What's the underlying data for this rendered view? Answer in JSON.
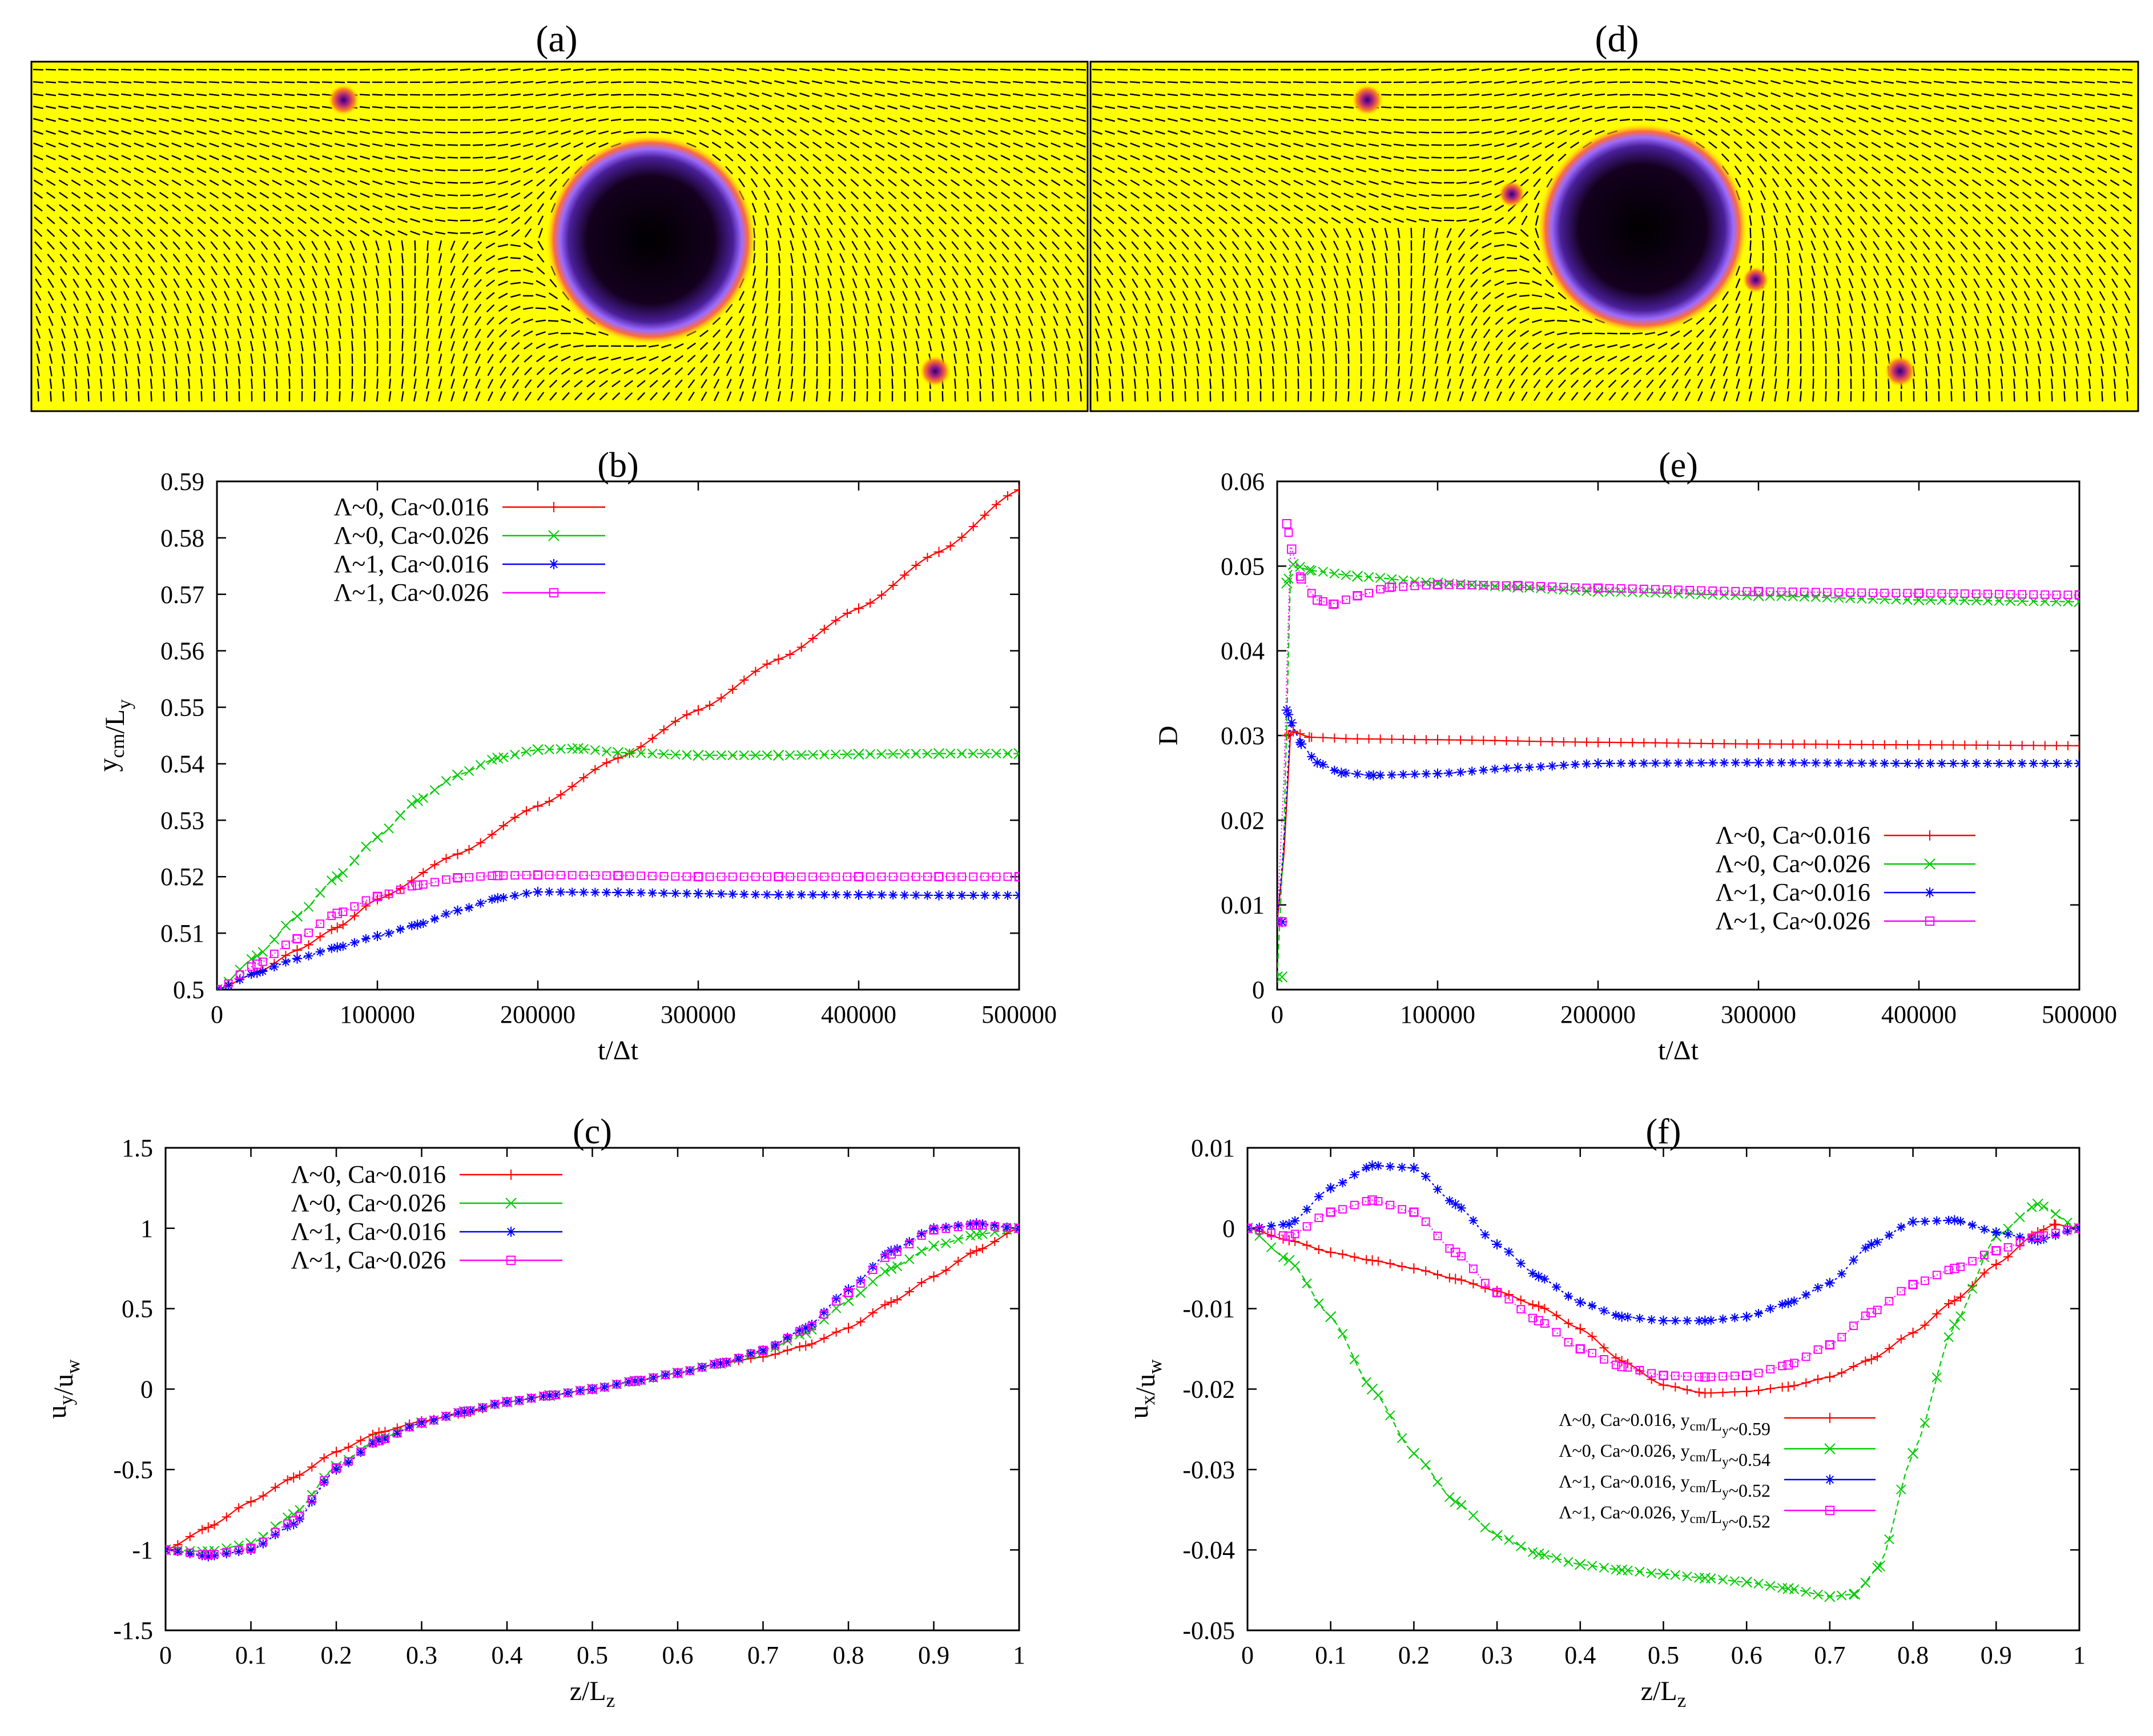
{
  "colors": {
    "red": "#ff0000",
    "green": "#00cc00",
    "blue": "#0000ff",
    "magenta": "#ff00ff",
    "field_bg": "#ffff00",
    "drop_core": "#000000",
    "drop_rim": "#8040ff"
  },
  "panels": {
    "a": {
      "label": "(a)"
    },
    "d": {
      "label": "(d)"
    }
  },
  "chart_data": [
    {
      "id": "b",
      "type": "line",
      "title": "(b)",
      "xlabel": "t/Δt",
      "ylabel": "y_cm/L_y",
      "xlim": [
        0,
        500000
      ],
      "ylim": [
        0.5,
        0.59
      ],
      "xticks": [
        0,
        100000,
        200000,
        300000,
        400000,
        500000
      ],
      "xtick_labels": [
        "0",
        "100000",
        "200000",
        "300000",
        "400000",
        "500000"
      ],
      "yticks": [
        0.5,
        0.51,
        0.52,
        0.53,
        0.54,
        0.55,
        0.56,
        0.57,
        0.58,
        0.59
      ],
      "ytick_labels": [
        "0.5",
        "0.51",
        "0.52",
        "0.53",
        "0.54",
        "0.55",
        "0.56",
        "0.57",
        "0.58",
        "0.59"
      ],
      "legend": "top-left",
      "series": [
        {
          "name": "Λ~0, Ca~0.016",
          "color": "#ff0000",
          "marker": "plus",
          "x": [
            0,
            25000,
            50000,
            75000,
            100000,
            150000,
            200000,
            250000,
            300000,
            350000,
            400000,
            450000,
            500000
          ],
          "y": [
            0.5,
            0.503,
            0.507,
            0.511,
            0.516,
            0.524,
            0.5325,
            0.541,
            0.5495,
            0.5585,
            0.5675,
            0.5775,
            0.5885
          ]
        },
        {
          "name": "Λ~0, Ca~0.026",
          "color": "#00cc00",
          "marker": "cross",
          "x": [
            0,
            25000,
            50000,
            75000,
            100000,
            125000,
            150000,
            175000,
            200000,
            225000,
            250000,
            300000,
            350000,
            400000,
            450000,
            500000
          ],
          "y": [
            0.5,
            0.506,
            0.513,
            0.52,
            0.527,
            0.5335,
            0.538,
            0.541,
            0.5425,
            0.5427,
            0.542,
            0.5415,
            0.5415,
            0.5417,
            0.5418,
            0.5418
          ]
        },
        {
          "name": "Λ~1, Ca~0.016",
          "color": "#0000ff",
          "marker": "star",
          "x": [
            0,
            25000,
            50000,
            75000,
            100000,
            125000,
            150000,
            175000,
            200000,
            250000,
            300000,
            350000,
            400000,
            450000,
            500000
          ],
          "y": [
            0.5,
            0.503,
            0.5055,
            0.5075,
            0.5095,
            0.5115,
            0.514,
            0.5162,
            0.5173,
            0.5172,
            0.517,
            0.5168,
            0.5168,
            0.5167,
            0.5167
          ]
        },
        {
          "name": "Λ~1, Ca~0.026",
          "color": "#ff00ff",
          "marker": "square",
          "x": [
            0,
            25000,
            50000,
            75000,
            100000,
            125000,
            150000,
            175000,
            200000,
            250000,
            300000,
            350000,
            400000,
            450000,
            500000
          ],
          "y": [
            0.5,
            0.5045,
            0.509,
            0.5135,
            0.5165,
            0.5185,
            0.5198,
            0.5202,
            0.5203,
            0.5202,
            0.52,
            0.52,
            0.52,
            0.52,
            0.52
          ]
        }
      ]
    },
    {
      "id": "e",
      "type": "line",
      "title": "(e)",
      "xlabel": "t/Δt",
      "ylabel": "D",
      "xlim": [
        0,
        500000
      ],
      "ylim": [
        0,
        0.06
      ],
      "xticks": [
        0,
        100000,
        200000,
        300000,
        400000,
        500000
      ],
      "xtick_labels": [
        "0",
        "100000",
        "200000",
        "300000",
        "400000",
        "500000"
      ],
      "yticks": [
        0,
        0.01,
        0.02,
        0.03,
        0.04,
        0.05,
        0.06
      ],
      "ytick_labels": [
        "0",
        "0.01",
        "0.02",
        "0.03",
        "0.04",
        "0.05",
        "0.06"
      ],
      "legend": "bottom-right",
      "series": [
        {
          "name": "Λ~0, Ca~0.016",
          "color": "#ff0000",
          "marker": "plus",
          "x": [
            0,
            3000,
            6000,
            10000,
            20000,
            50000,
            100000,
            200000,
            300000,
            400000,
            500000
          ],
          "y": [
            0.008,
            0.008,
            0.03,
            0.0305,
            0.0298,
            0.0296,
            0.0295,
            0.0292,
            0.029,
            0.0289,
            0.0288
          ]
        },
        {
          "name": "Λ~0, Ca~0.026",
          "color": "#00cc00",
          "marker": "cross",
          "x": [
            0,
            3000,
            6000,
            10000,
            20000,
            50000,
            100000,
            150000,
            200000,
            300000,
            400000,
            500000
          ],
          "y": [
            0.0015,
            0.0015,
            0.048,
            0.0502,
            0.0495,
            0.0488,
            0.048,
            0.0475,
            0.047,
            0.0465,
            0.046,
            0.0458
          ]
        },
        {
          "name": "Λ~1, Ca~0.016",
          "color": "#0000ff",
          "marker": "star",
          "x": [
            0,
            3000,
            6000,
            9000,
            15000,
            25000,
            40000,
            60000,
            100000,
            150000,
            200000,
            300000,
            400000,
            500000
          ],
          "y": [
            0.008,
            0.008,
            0.033,
            0.0315,
            0.029,
            0.0268,
            0.0256,
            0.0253,
            0.0255,
            0.0262,
            0.0267,
            0.0268,
            0.0267,
            0.0267
          ]
        },
        {
          "name": "Λ~1, Ca~0.026",
          "color": "#ff00ff",
          "marker": "square",
          "x": [
            0,
            3000,
            6000,
            9000,
            15000,
            25000,
            35000,
            50000,
            70000,
            100000,
            150000,
            200000,
            300000,
            400000,
            500000
          ],
          "y": [
            0.008,
            0.008,
            0.055,
            0.052,
            0.0485,
            0.046,
            0.0455,
            0.0465,
            0.0475,
            0.0478,
            0.0477,
            0.0474,
            0.047,
            0.0468,
            0.0466
          ]
        }
      ]
    },
    {
      "id": "c",
      "type": "line",
      "title": "(c)",
      "xlabel": "z/L_z",
      "ylabel": "u_y/u_w",
      "xlim": [
        0,
        1
      ],
      "ylim": [
        -1.5,
        1.5
      ],
      "xticks": [
        0,
        0.1,
        0.2,
        0.3,
        0.4,
        0.5,
        0.6,
        0.7,
        0.8,
        0.9,
        1
      ],
      "xtick_labels": [
        "0",
        "0.1",
        "0.2",
        "0.3",
        "0.4",
        "0.5",
        "0.6",
        "0.7",
        "0.8",
        "0.9",
        "1"
      ],
      "yticks": [
        -1.5,
        -1,
        -0.5,
        0,
        0.5,
        1,
        1.5
      ],
      "ytick_labels": [
        "-1.5",
        "-1",
        "-0.5",
        "0",
        "0.5",
        "1",
        "1.5"
      ],
      "legend": "top-left",
      "series": [
        {
          "name": "Λ~0, Ca~0.016",
          "color": "#ff0000",
          "marker": "plus",
          "x": [
            0,
            0.05,
            0.1,
            0.15,
            0.2,
            0.25,
            0.3,
            0.35,
            0.4,
            0.45,
            0.5,
            0.55,
            0.6,
            0.65,
            0.7,
            0.75,
            0.8,
            0.85,
            0.9,
            0.95,
            1
          ],
          "y": [
            -1,
            -0.86,
            -0.7,
            -0.55,
            -0.39,
            -0.27,
            -0.2,
            -0.15,
            -0.08,
            -0.04,
            0,
            0.05,
            0.1,
            0.16,
            0.2,
            0.27,
            0.38,
            0.54,
            0.7,
            0.86,
            1
          ]
        },
        {
          "name": "Λ~0, Ca~0.026",
          "color": "#00cc00",
          "marker": "cross",
          "x": [
            0,
            0.05,
            0.1,
            0.15,
            0.2,
            0.25,
            0.3,
            0.35,
            0.4,
            0.45,
            0.5,
            0.55,
            0.6,
            0.65,
            0.7,
            0.75,
            0.8,
            0.85,
            0.9,
            0.95,
            1
          ],
          "y": [
            -1,
            -1.01,
            -0.96,
            -0.78,
            -0.48,
            -0.31,
            -0.21,
            -0.14,
            -0.08,
            -0.04,
            0,
            0.05,
            0.1,
            0.16,
            0.23,
            0.35,
            0.55,
            0.75,
            0.89,
            0.96,
            1
          ]
        },
        {
          "name": "Λ~1, Ca~0.016",
          "color": "#0000ff",
          "marker": "star",
          "x": [
            0,
            0.05,
            0.1,
            0.15,
            0.2,
            0.25,
            0.3,
            0.35,
            0.4,
            0.45,
            0.5,
            0.55,
            0.6,
            0.65,
            0.7,
            0.75,
            0.8,
            0.85,
            0.9,
            0.95,
            1
          ],
          "y": [
            -1,
            -1.04,
            -1.0,
            -0.84,
            -0.5,
            -0.32,
            -0.21,
            -0.14,
            -0.08,
            -0.04,
            0,
            0.05,
            0.1,
            0.16,
            0.24,
            0.38,
            0.62,
            0.86,
            1.0,
            1.03,
            1
          ]
        },
        {
          "name": "Λ~1, Ca~0.026",
          "color": "#ff00ff",
          "marker": "square",
          "x": [
            0,
            0.05,
            0.1,
            0.15,
            0.2,
            0.25,
            0.3,
            0.35,
            0.4,
            0.45,
            0.5,
            0.55,
            0.6,
            0.65,
            0.7,
            0.75,
            0.8,
            0.85,
            0.9,
            0.95,
            1
          ],
          "y": [
            -1,
            -1.03,
            -0.99,
            -0.82,
            -0.49,
            -0.32,
            -0.21,
            -0.14,
            -0.08,
            -0.04,
            0,
            0.05,
            0.1,
            0.16,
            0.24,
            0.37,
            0.6,
            0.84,
            0.99,
            1.02,
            1
          ]
        }
      ]
    },
    {
      "id": "f",
      "type": "line",
      "title": "(f)",
      "xlabel": "z/L_z",
      "ylabel": "u_x/u_w",
      "xlim": [
        0,
        1
      ],
      "ylim": [
        -0.05,
        0.01
      ],
      "xticks": [
        0,
        0.1,
        0.2,
        0.3,
        0.4,
        0.5,
        0.6,
        0.7,
        0.8,
        0.9,
        1
      ],
      "xtick_labels": [
        "0",
        "0.1",
        "0.2",
        "0.3",
        "0.4",
        "0.5",
        "0.6",
        "0.7",
        "0.8",
        "0.9",
        "1"
      ],
      "yticks": [
        -0.05,
        -0.04,
        -0.03,
        -0.02,
        -0.01,
        0,
        0.01
      ],
      "ytick_labels": [
        "-0.05",
        "-0.04",
        "-0.03",
        "-0.02",
        "-0.01",
        "0",
        "0.01"
      ],
      "legend": "bottom-right",
      "series": [
        {
          "name": "Λ~0, Ca~0.016, y_cm/L_y~0.59",
          "color": "#ff0000",
          "marker": "plus",
          "x": [
            0,
            0.05,
            0.1,
            0.15,
            0.2,
            0.25,
            0.3,
            0.35,
            0.4,
            0.45,
            0.5,
            0.55,
            0.6,
            0.65,
            0.7,
            0.75,
            0.8,
            0.85,
            0.9,
            0.95,
            0.97,
            1
          ],
          "y": [
            0,
            -0.0015,
            -0.003,
            -0.004,
            -0.005,
            -0.0063,
            -0.0078,
            -0.0097,
            -0.0125,
            -0.0165,
            -0.0195,
            -0.0205,
            -0.0203,
            -0.0197,
            -0.0185,
            -0.0163,
            -0.013,
            -0.009,
            -0.0045,
            -0.0005,
            0.0005,
            0
          ]
        },
        {
          "name": "Λ~0, Ca~0.026, y_cm/L_y~0.54",
          "color": "#00cc00",
          "marker": "cross",
          "x": [
            0,
            0.05,
            0.1,
            0.15,
            0.2,
            0.25,
            0.3,
            0.35,
            0.4,
            0.45,
            0.5,
            0.55,
            0.6,
            0.65,
            0.7,
            0.73,
            0.76,
            0.8,
            0.85,
            0.9,
            0.95,
            1
          ],
          "y": [
            0,
            -0.004,
            -0.011,
            -0.02,
            -0.028,
            -0.034,
            -0.0382,
            -0.0405,
            -0.0418,
            -0.0425,
            -0.043,
            -0.0435,
            -0.044,
            -0.0448,
            -0.0458,
            -0.0455,
            -0.042,
            -0.028,
            -0.012,
            -0.001,
            0.003,
            0
          ]
        },
        {
          "name": "Λ~1, Ca~0.016, y_cm/L_y~0.52",
          "color": "#0000ff",
          "marker": "star",
          "x": [
            0,
            0.05,
            0.1,
            0.15,
            0.2,
            0.25,
            0.3,
            0.35,
            0.4,
            0.45,
            0.5,
            0.55,
            0.6,
            0.65,
            0.7,
            0.75,
            0.8,
            0.85,
            0.9,
            0.95,
            1
          ],
          "y": [
            0,
            0.0005,
            0.005,
            0.0078,
            0.0075,
            0.003,
            -0.002,
            -0.006,
            -0.0092,
            -0.011,
            -0.0115,
            -0.0115,
            -0.011,
            -0.0093,
            -0.0068,
            -0.002,
            0.0008,
            0.001,
            -0.0005,
            -0.0015,
            0
          ]
        },
        {
          "name": "Λ~1, Ca~0.026, y_cm/L_y~0.52",
          "color": "#ff00ff",
          "marker": "square",
          "x": [
            0,
            0.05,
            0.1,
            0.15,
            0.2,
            0.25,
            0.3,
            0.35,
            0.4,
            0.45,
            0.5,
            0.55,
            0.6,
            0.65,
            0.7,
            0.75,
            0.8,
            0.85,
            0.9,
            0.95,
            1
          ],
          "y": [
            0,
            -0.001,
            0.002,
            0.0035,
            0.002,
            -0.003,
            -0.008,
            -0.0115,
            -0.015,
            -0.0172,
            -0.0183,
            -0.0185,
            -0.0183,
            -0.017,
            -0.0145,
            -0.0105,
            -0.007,
            -0.005,
            -0.0028,
            -0.001,
            0
          ]
        }
      ]
    }
  ]
}
